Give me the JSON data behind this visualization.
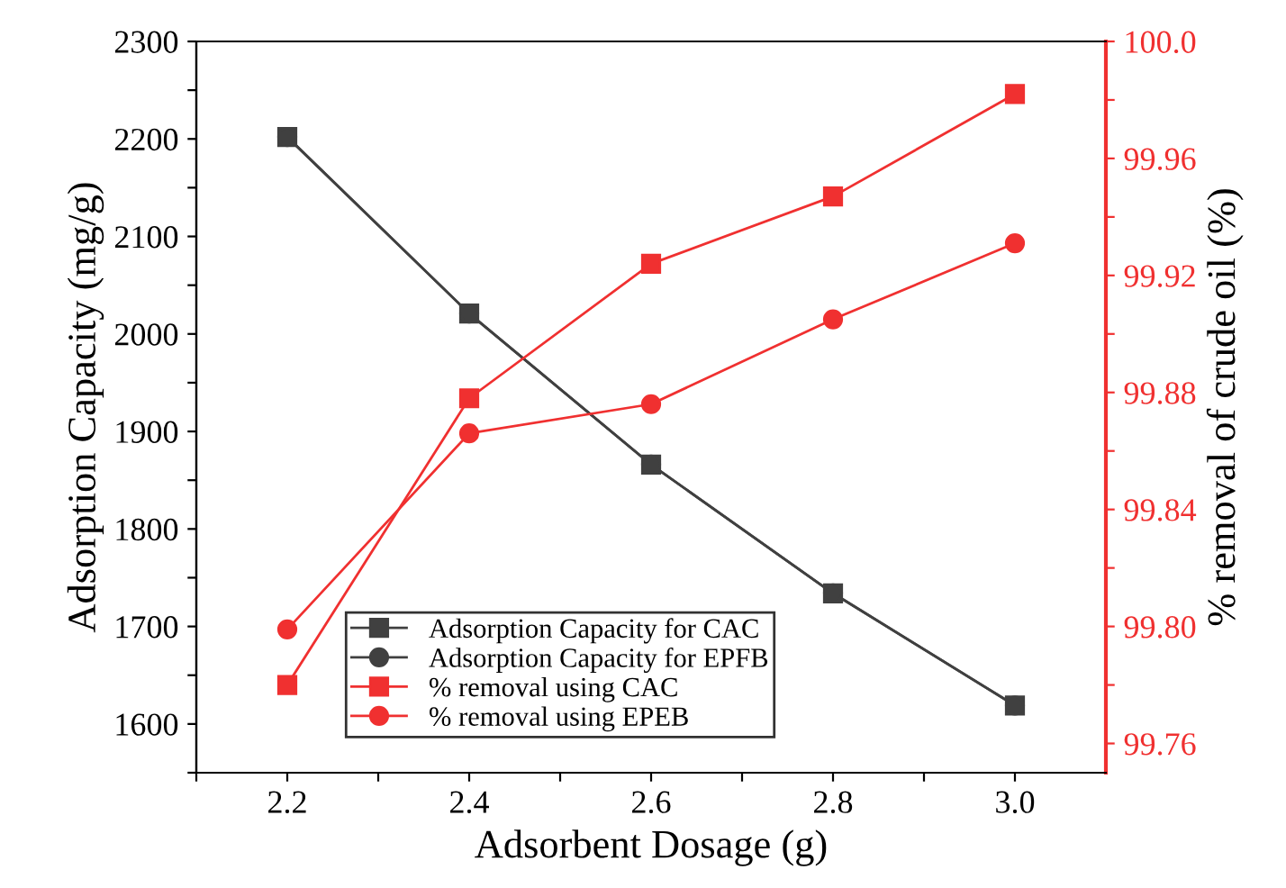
{
  "chart_data": {
    "type": "line",
    "xlabel": "Adsorbent Dosage (g)",
    "ylabel": "Adsorption Capacity (mg/g)",
    "y2label": "% removal of crude oil (%)",
    "x": [
      2.2,
      2.4,
      2.6,
      2.8,
      3.0
    ],
    "series": [
      {
        "name": "Adsorption Capacity for CAC",
        "color": "#404040",
        "marker": "square",
        "values": [
          2202,
          2021,
          1866,
          1734,
          1619
        ]
      },
      {
        "name": "Adsorption Capacity for EPFB",
        "color": "#404040",
        "marker": "circle",
        "values": [
          2202,
          2021,
          1866,
          1734,
          1619
        ]
      },
      {
        "name": "% removal using CAC",
        "color": "#f03030",
        "marker": "square",
        "axis": "y2",
        "values": [
          99.78,
          99.878,
          99.924,
          99.947,
          99.982
        ]
      },
      {
        "name": "% removal using EPEB",
        "color": "#f03030",
        "marker": "circle",
        "axis": "y2",
        "values": [
          99.799,
          99.866,
          99.876,
          99.905,
          99.931
        ]
      }
    ],
    "xlim": [
      2.1,
      3.1
    ],
    "xticks": [
      {
        "value": 2.1,
        "label": null
      },
      2.2,
      {
        "value": 2.3,
        "label": null
      },
      2.4,
      {
        "value": 2.5,
        "label": null
      },
      2.6,
      {
        "value": 2.7,
        "label": null
      },
      2.8,
      {
        "value": 2.9,
        "label": null
      },
      "3.0"
    ],
    "ylim": [
      1550,
      2300
    ],
    "yticks": [
      {
        "value": 1550,
        "label": null
      },
      1600,
      {
        "value": 1650,
        "label": null
      },
      1700,
      {
        "value": 1750,
        "label": null
      },
      1800,
      {
        "value": 1850,
        "label": null
      },
      1900,
      {
        "value": 1950,
        "label": null
      },
      2000,
      {
        "value": 2050,
        "label": null
      },
      2100,
      {
        "value": 2150,
        "label": null
      },
      2200,
      {
        "value": 2250,
        "label": null
      },
      2300
    ],
    "y2lim": [
      99.75,
      100.0
    ],
    "y2ticks": [
      {
        "value": 99.76,
        "label": "99.76"
      },
      {
        "value": 99.78,
        "label": null
      },
      {
        "value": 99.8,
        "label": "99.80"
      },
      {
        "value": 99.82,
        "label": null
      },
      {
        "value": 99.84,
        "label": "99.84"
      },
      {
        "value": 99.86,
        "label": null
      },
      {
        "value": 99.88,
        "label": "99.88"
      },
      {
        "value": 99.9,
        "label": null
      },
      {
        "value": 99.92,
        "label": "99.92"
      },
      {
        "value": 99.94,
        "label": null
      },
      {
        "value": 99.96,
        "label": "99.96"
      },
      {
        "value": 99.98,
        "label": null
      },
      {
        "value": 100.0,
        "label": "100.0"
      }
    ],
    "legend": "bottom",
    "grid": false,
    "line_style": "solid"
  }
}
